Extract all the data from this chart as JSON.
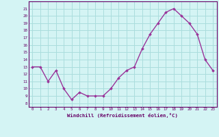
{
  "x": [
    0,
    1,
    2,
    3,
    4,
    5,
    6,
    7,
    8,
    9,
    10,
    11,
    12,
    13,
    14,
    15,
    16,
    17,
    18,
    19,
    20,
    21,
    22,
    23
  ],
  "y": [
    13,
    13,
    11,
    12.5,
    10,
    8.5,
    9.5,
    9,
    9,
    9,
    10,
    11.5,
    12.5,
    13,
    15.5,
    17.5,
    19,
    20.5,
    21,
    20,
    19,
    17.5,
    14,
    12.5
  ],
  "line_color": "#993399",
  "marker_color": "#993399",
  "bg_color": "#d4f4f4",
  "grid_color": "#aadddd",
  "xlabel": "Windchill (Refroidissement éolien,°C)",
  "ylabel_ticks": [
    8,
    9,
    10,
    11,
    12,
    13,
    14,
    15,
    16,
    17,
    18,
    19,
    20,
    21
  ],
  "ylim": [
    7.5,
    22
  ],
  "xlim": [
    -0.5,
    23.5
  ],
  "xticks": [
    0,
    1,
    2,
    3,
    4,
    5,
    6,
    7,
    8,
    9,
    10,
    11,
    12,
    13,
    14,
    15,
    16,
    17,
    18,
    19,
    20,
    21,
    22,
    23
  ],
  "axis_color": "#660066",
  "font_family": "monospace"
}
